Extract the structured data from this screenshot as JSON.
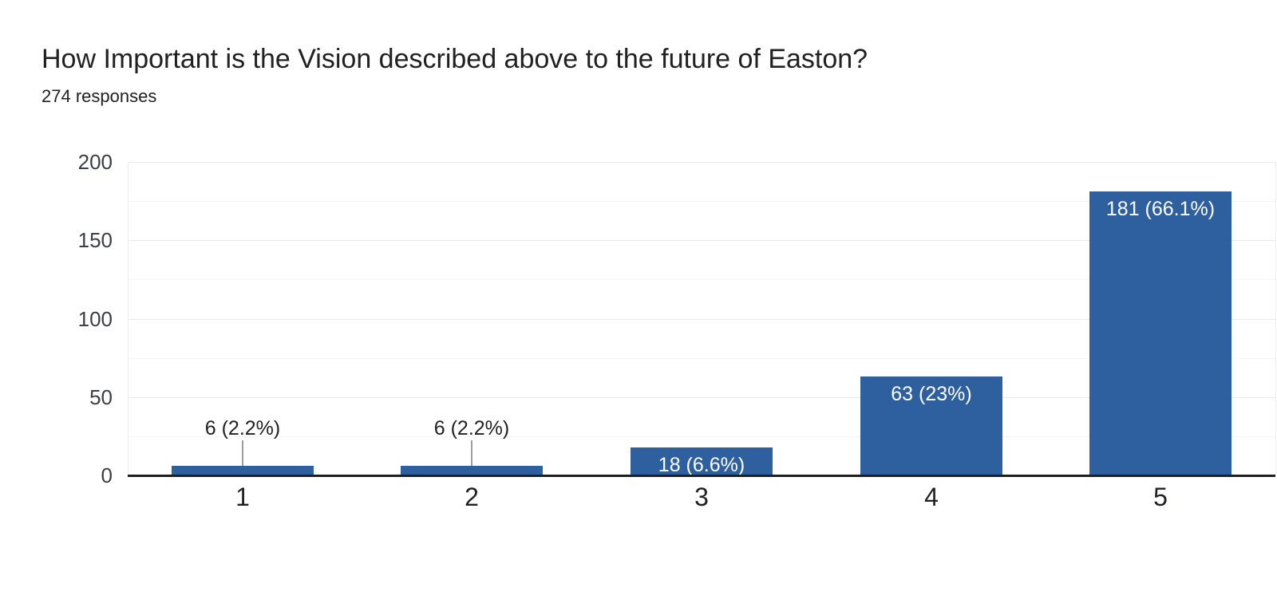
{
  "header": {
    "title": "How Important is the Vision described above to the future of Easton?",
    "subtitle": "274 responses"
  },
  "chart_data": {
    "type": "bar",
    "title": "How Important is the Vision described above to the future of Easton?",
    "subtitle": "274 responses",
    "categories": [
      "1",
      "2",
      "3",
      "4",
      "5"
    ],
    "values": [
      6,
      6,
      18,
      63,
      181
    ],
    "labels": [
      "6 (2.2%)",
      "6 (2.2%)",
      "18 (6.6%)",
      "63 (23%)",
      "181 (66.1%)"
    ],
    "percentages": [
      2.2,
      2.2,
      6.6,
      23,
      66.1
    ],
    "total_responses": 274,
    "xlabel": "",
    "ylabel": "",
    "ylim": [
      0,
      200
    ],
    "yticks": [
      0,
      50,
      100,
      150,
      200
    ],
    "minor_gridlines": [
      25,
      75,
      125,
      175
    ],
    "grid": true,
    "legend": "none",
    "bar_color": "#2e5f9e",
    "annotation_inside_color": "#ffffff",
    "annotation_outside_color": "#212121"
  }
}
